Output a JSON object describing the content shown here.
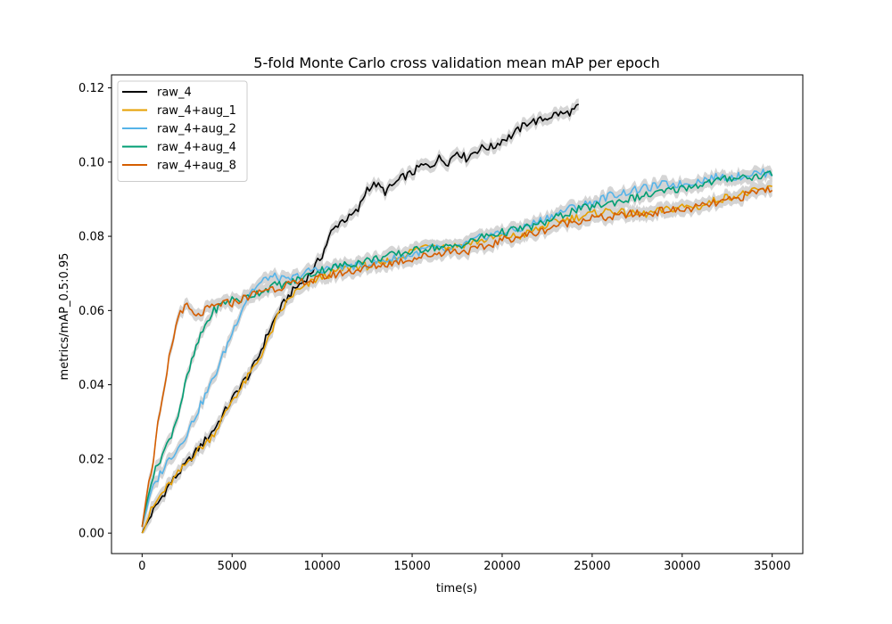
{
  "chart_data": {
    "type": "line",
    "title": "5-fold Monte Carlo cross validation mean mAP per epoch",
    "xlabel": "time(s)",
    "ylabel": "metrics/mAP_0.5:0.95",
    "xlim": [
      -1700,
      36700
    ],
    "ylim": [
      -0.0055,
      0.1235
    ],
    "xticks": [
      0,
      5000,
      10000,
      15000,
      20000,
      25000,
      30000,
      35000
    ],
    "xtick_labels": [
      "0",
      "5000",
      "10000",
      "15000",
      "20000",
      "25000",
      "30000",
      "35000"
    ],
    "yticks": [
      0.0,
      0.02,
      0.04,
      0.06,
      0.08,
      0.1,
      0.12
    ],
    "ytick_labels": [
      "0.00",
      "0.02",
      "0.04",
      "0.06",
      "0.08",
      "0.10",
      "0.12"
    ],
    "grid": false,
    "legend_position": "top-left",
    "band_color": "#d3d3d3",
    "series": [
      {
        "name": "raw_4",
        "color": "#000000",
        "x": [
          0,
          500,
          1000,
          1500,
          2000,
          2500,
          3000,
          3500,
          4000,
          4500,
          5000,
          5500,
          6000,
          6500,
          7000,
          7500,
          8000,
          8500,
          9000,
          9500,
          10000,
          10500,
          11000,
          11500,
          12000,
          12500,
          13000,
          13500,
          14000,
          14500,
          15000,
          15500,
          16000,
          16500,
          17000,
          17500,
          18000,
          18500,
          19000,
          19500,
          20000,
          20500,
          21000,
          21500,
          22000,
          22500,
          23000,
          23500,
          24000,
          24300
        ],
        "y": [
          0.0,
          0.005,
          0.009,
          0.013,
          0.016,
          0.019,
          0.022,
          0.025,
          0.028,
          0.032,
          0.036,
          0.04,
          0.043,
          0.048,
          0.054,
          0.059,
          0.063,
          0.066,
          0.068,
          0.071,
          0.075,
          0.081,
          0.084,
          0.085,
          0.087,
          0.093,
          0.094,
          0.092,
          0.094,
          0.096,
          0.097,
          0.099,
          0.099,
          0.101,
          0.1,
          0.103,
          0.101,
          0.103,
          0.104,
          0.104,
          0.106,
          0.107,
          0.109,
          0.111,
          0.111,
          0.112,
          0.113,
          0.113,
          0.114,
          0.115
        ]
      },
      {
        "name": "raw_4+aug_1",
        "color": "#e69f00",
        "x": [
          0,
          500,
          1000,
          1500,
          2000,
          2500,
          3000,
          3500,
          4000,
          4500,
          5000,
          5500,
          6000,
          6500,
          7000,
          7500,
          8000,
          8500,
          9000,
          9500,
          10000,
          11000,
          12000,
          13000,
          14000,
          15000,
          16000,
          17000,
          18000,
          19000,
          20000,
          21000,
          22000,
          23000,
          24000,
          25000,
          26000,
          27000,
          28000,
          29000,
          30000,
          31000,
          32000,
          33000,
          34000,
          35000
        ],
        "y": [
          0.0,
          0.006,
          0.01,
          0.013,
          0.016,
          0.019,
          0.022,
          0.024,
          0.027,
          0.031,
          0.036,
          0.039,
          0.043,
          0.047,
          0.052,
          0.058,
          0.062,
          0.065,
          0.066,
          0.068,
          0.069,
          0.071,
          0.072,
          0.072,
          0.074,
          0.076,
          0.078,
          0.077,
          0.078,
          0.079,
          0.08,
          0.08,
          0.082,
          0.084,
          0.085,
          0.086,
          0.087,
          0.086,
          0.086,
          0.087,
          0.088,
          0.088,
          0.09,
          0.091,
          0.092,
          0.093
        ]
      },
      {
        "name": "raw_4+aug_2",
        "color": "#56b4e9",
        "x": [
          0,
          500,
          1000,
          1500,
          2000,
          2500,
          3000,
          3500,
          4000,
          4500,
          5000,
          5500,
          6000,
          6500,
          7000,
          7500,
          8000,
          8500,
          9000,
          9500,
          10000,
          11000,
          12000,
          13000,
          14000,
          15000,
          16000,
          17000,
          18000,
          19000,
          20000,
          21000,
          22000,
          23000,
          24000,
          25000,
          26000,
          27000,
          28000,
          29000,
          30000,
          31000,
          32000,
          33000,
          34000,
          35000
        ],
        "y": [
          0.002,
          0.011,
          0.016,
          0.02,
          0.023,
          0.027,
          0.032,
          0.037,
          0.042,
          0.048,
          0.054,
          0.06,
          0.065,
          0.067,
          0.069,
          0.069,
          0.068,
          0.069,
          0.07,
          0.071,
          0.071,
          0.072,
          0.072,
          0.073,
          0.074,
          0.075,
          0.077,
          0.076,
          0.078,
          0.08,
          0.081,
          0.082,
          0.084,
          0.086,
          0.088,
          0.089,
          0.091,
          0.092,
          0.093,
          0.094,
          0.094,
          0.095,
          0.096,
          0.096,
          0.097,
          0.097
        ]
      },
      {
        "name": "raw_4+aug_4",
        "color": "#009e73",
        "x": [
          0,
          500,
          1000,
          1500,
          2000,
          2500,
          3000,
          3500,
          4000,
          4500,
          5000,
          5500,
          6000,
          6500,
          7000,
          7500,
          8000,
          8500,
          9000,
          9500,
          10000,
          11000,
          12000,
          13000,
          14000,
          15000,
          16000,
          17000,
          18000,
          19000,
          20000,
          21000,
          22000,
          23000,
          24000,
          25000,
          26000,
          27000,
          28000,
          29000,
          30000,
          31000,
          32000,
          33000,
          34000,
          35000
        ],
        "y": [
          0.002,
          0.014,
          0.02,
          0.025,
          0.032,
          0.042,
          0.05,
          0.056,
          0.06,
          0.062,
          0.063,
          0.063,
          0.064,
          0.065,
          0.066,
          0.067,
          0.067,
          0.068,
          0.069,
          0.07,
          0.071,
          0.072,
          0.073,
          0.074,
          0.075,
          0.076,
          0.077,
          0.077,
          0.078,
          0.08,
          0.081,
          0.082,
          0.083,
          0.085,
          0.087,
          0.088,
          0.089,
          0.09,
          0.091,
          0.092,
          0.093,
          0.094,
          0.095,
          0.096,
          0.096,
          0.097
        ]
      },
      {
        "name": "raw_4+aug_8",
        "color": "#d55e00",
        "x": [
          0,
          300,
          600,
          900,
          1200,
          1500,
          1800,
          2100,
          2500,
          3000,
          3500,
          4000,
          4500,
          5000,
          5500,
          6000,
          6500,
          7000,
          7500,
          8000,
          8500,
          9000,
          9500,
          10000,
          11000,
          12000,
          13000,
          14000,
          15000,
          16000,
          17000,
          18000,
          19000,
          20000,
          21000,
          22000,
          23000,
          24000,
          25000,
          26000,
          27000,
          28000,
          29000,
          30000,
          31000,
          32000,
          33000,
          34000,
          35000
        ],
        "y": [
          0.002,
          0.012,
          0.019,
          0.03,
          0.037,
          0.047,
          0.054,
          0.06,
          0.061,
          0.058,
          0.06,
          0.061,
          0.062,
          0.062,
          0.063,
          0.064,
          0.065,
          0.066,
          0.066,
          0.067,
          0.067,
          0.068,
          0.068,
          0.069,
          0.07,
          0.071,
          0.072,
          0.073,
          0.074,
          0.075,
          0.076,
          0.076,
          0.077,
          0.079,
          0.08,
          0.081,
          0.083,
          0.084,
          0.085,
          0.085,
          0.086,
          0.086,
          0.087,
          0.087,
          0.088,
          0.089,
          0.09,
          0.092,
          0.093
        ]
      }
    ]
  }
}
